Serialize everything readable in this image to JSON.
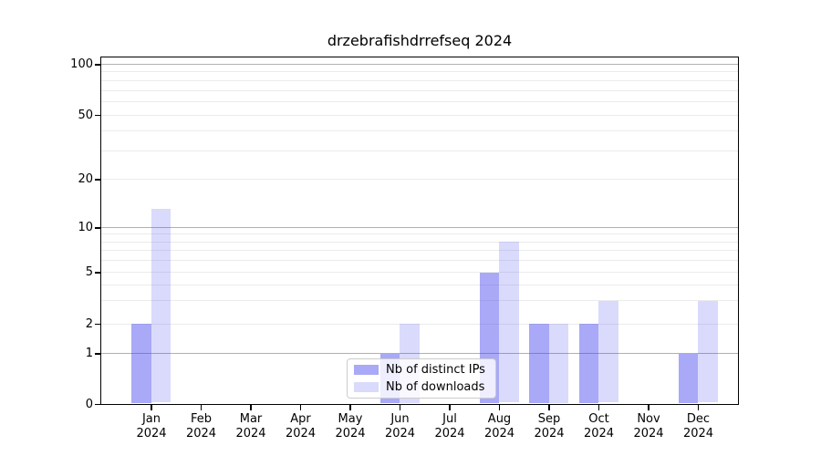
{
  "title": "drzebrafishdrrefseq 2024",
  "chart_data": {
    "type": "bar",
    "title": "drzebrafishdrrefseq 2024",
    "categories": [
      "Jan 2024",
      "Feb 2024",
      "Mar 2024",
      "Apr 2024",
      "May 2024",
      "Jun 2024",
      "Jul 2024",
      "Aug 2024",
      "Sep 2024",
      "Oct 2024",
      "Nov 2024",
      "Dec 2024"
    ],
    "month_line1": [
      "Jan",
      "Feb",
      "Mar",
      "Apr",
      "May",
      "Jun",
      "Jul",
      "Aug",
      "Sep",
      "Oct",
      "Nov",
      "Dec"
    ],
    "month_line2": "2024",
    "series": [
      {
        "name": "Nb of distinct IPs",
        "color_solid": "#a9a9f7",
        "color_rgba": "rgba(68,68,238,0.46)",
        "values": [
          2,
          0,
          0,
          0,
          0,
          1,
          0,
          5,
          2,
          2,
          0,
          1
        ]
      },
      {
        "name": "Nb of downloads",
        "color_solid": "#d9d9fb",
        "color_rgba": "rgba(68,68,238,0.20)",
        "values": [
          13,
          0,
          0,
          0,
          0,
          2,
          0,
          8,
          2,
          3,
          0,
          3
        ]
      }
    ],
    "xlabel": "",
    "ylabel": "",
    "yscale": "symlog",
    "ylim": [
      0,
      112
    ],
    "yticks_labeled": [
      0,
      1,
      2,
      5,
      10,
      20,
      50,
      100
    ],
    "yticks_major": [
      1,
      10,
      100
    ],
    "yticks_minor_labeled": [
      2,
      5,
      20,
      50
    ],
    "yticks_minor_unlabeled": [
      3,
      4,
      6,
      7,
      8,
      9,
      30,
      40,
      60,
      70,
      80,
      90
    ],
    "grid": "horizontal",
    "legend_position": "lower center",
    "legend_items": [
      {
        "label": "Nb of distinct IPs"
      },
      {
        "label": "Nb of downloads"
      }
    ]
  },
  "colors": {
    "background": "#ffffff",
    "spine": "#000000",
    "grid_major": "#b0b0b0",
    "grid_minor": "#ebebeb",
    "bar_distinct_ips": "#a9a9f7",
    "bar_downloads": "#d9d9fb",
    "legend_border": "#cccccc"
  }
}
